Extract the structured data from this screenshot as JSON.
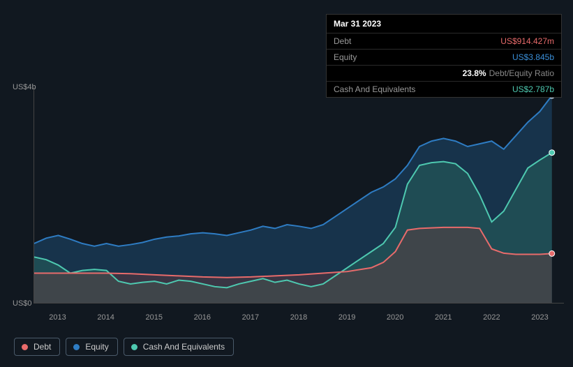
{
  "tooltip": {
    "date": "Mar 31 2023",
    "rows": [
      {
        "label": "Debt",
        "value": "US$914.427m",
        "color": "red"
      },
      {
        "label": "Equity",
        "value": "US$3.845b",
        "color": "blue"
      },
      {
        "label": "",
        "ratio": "23.8%",
        "ratio_label": "Debt/Equity Ratio"
      },
      {
        "label": "Cash And Equivalents",
        "value": "US$2.787b",
        "color": "teal"
      }
    ]
  },
  "chart": {
    "type": "area",
    "background_color": "#111820",
    "grid_color": "#2a3540",
    "axis_color": "#444",
    "label_color": "#999",
    "label_fontsize": 11,
    "ylim": [
      0,
      4
    ],
    "yticks": [
      {
        "v": 0,
        "label": "US$0"
      },
      {
        "v": 4,
        "label": "US$4b"
      }
    ],
    "xlim": [
      2012.5,
      2023.5
    ],
    "xticks": [
      2013,
      2014,
      2015,
      2016,
      2017,
      2018,
      2019,
      2020,
      2021,
      2022,
      2023
    ],
    "cursor_x": 2023.25,
    "series": [
      {
        "name": "Equity",
        "legend": "Equity",
        "stroke": "#2e7cc3",
        "fill": "#1e4a70",
        "fill_opacity": 0.55,
        "line_width": 2,
        "cursor_y": 3.845,
        "data": [
          [
            2012.5,
            1.1
          ],
          [
            2012.75,
            1.2
          ],
          [
            2013,
            1.25
          ],
          [
            2013.25,
            1.18
          ],
          [
            2013.5,
            1.1
          ],
          [
            2013.75,
            1.05
          ],
          [
            2014,
            1.1
          ],
          [
            2014.25,
            1.05
          ],
          [
            2014.5,
            1.08
          ],
          [
            2014.75,
            1.12
          ],
          [
            2015,
            1.18
          ],
          [
            2015.25,
            1.22
          ],
          [
            2015.5,
            1.24
          ],
          [
            2015.75,
            1.28
          ],
          [
            2016,
            1.3
          ],
          [
            2016.25,
            1.28
          ],
          [
            2016.5,
            1.25
          ],
          [
            2016.75,
            1.3
          ],
          [
            2017,
            1.35
          ],
          [
            2017.25,
            1.42
          ],
          [
            2017.5,
            1.38
          ],
          [
            2017.75,
            1.45
          ],
          [
            2018,
            1.42
          ],
          [
            2018.25,
            1.38
          ],
          [
            2018.5,
            1.45
          ],
          [
            2018.75,
            1.6
          ],
          [
            2019,
            1.75
          ],
          [
            2019.25,
            1.9
          ],
          [
            2019.5,
            2.05
          ],
          [
            2019.75,
            2.15
          ],
          [
            2020,
            2.3
          ],
          [
            2020.25,
            2.55
          ],
          [
            2020.5,
            2.9
          ],
          [
            2020.75,
            3.0
          ],
          [
            2021,
            3.05
          ],
          [
            2021.25,
            3.0
          ],
          [
            2021.5,
            2.9
          ],
          [
            2021.75,
            2.95
          ],
          [
            2022,
            3.0
          ],
          [
            2022.25,
            2.85
          ],
          [
            2022.5,
            3.1
          ],
          [
            2022.75,
            3.35
          ],
          [
            2023,
            3.55
          ],
          [
            2023.25,
            3.845
          ]
        ]
      },
      {
        "name": "Cash And Equivalents",
        "legend": "Cash And Equivalents",
        "stroke": "#4ec9b0",
        "fill": "#2a6b60",
        "fill_opacity": 0.45,
        "line_width": 2,
        "cursor_y": 2.787,
        "data": [
          [
            2012.5,
            0.85
          ],
          [
            2012.75,
            0.8
          ],
          [
            2013,
            0.7
          ],
          [
            2013.25,
            0.55
          ],
          [
            2013.5,
            0.6
          ],
          [
            2013.75,
            0.62
          ],
          [
            2014,
            0.6
          ],
          [
            2014.25,
            0.4
          ],
          [
            2014.5,
            0.35
          ],
          [
            2014.75,
            0.38
          ],
          [
            2015,
            0.4
          ],
          [
            2015.25,
            0.35
          ],
          [
            2015.5,
            0.42
          ],
          [
            2015.75,
            0.4
          ],
          [
            2016,
            0.35
          ],
          [
            2016.25,
            0.3
          ],
          [
            2016.5,
            0.28
          ],
          [
            2016.75,
            0.35
          ],
          [
            2017,
            0.4
          ],
          [
            2017.25,
            0.45
          ],
          [
            2017.5,
            0.38
          ],
          [
            2017.75,
            0.42
          ],
          [
            2018,
            0.35
          ],
          [
            2018.25,
            0.3
          ],
          [
            2018.5,
            0.35
          ],
          [
            2018.75,
            0.5
          ],
          [
            2019,
            0.65
          ],
          [
            2019.25,
            0.8
          ],
          [
            2019.5,
            0.95
          ],
          [
            2019.75,
            1.1
          ],
          [
            2020,
            1.4
          ],
          [
            2020.25,
            2.2
          ],
          [
            2020.5,
            2.55
          ],
          [
            2020.75,
            2.6
          ],
          [
            2021,
            2.62
          ],
          [
            2021.25,
            2.58
          ],
          [
            2021.5,
            2.4
          ],
          [
            2021.75,
            2.0
          ],
          [
            2022,
            1.5
          ],
          [
            2022.25,
            1.7
          ],
          [
            2022.5,
            2.1
          ],
          [
            2022.75,
            2.5
          ],
          [
            2023,
            2.65
          ],
          [
            2023.25,
            2.787
          ]
        ]
      },
      {
        "name": "Debt",
        "legend": "Debt",
        "stroke": "#e86b6b",
        "fill": "#7a3a3a",
        "fill_opacity": 0.35,
        "line_width": 2,
        "cursor_y": 0.914,
        "data": [
          [
            2012.5,
            0.55
          ],
          [
            2013,
            0.55
          ],
          [
            2013.5,
            0.55
          ],
          [
            2014,
            0.55
          ],
          [
            2014.5,
            0.54
          ],
          [
            2015,
            0.52
          ],
          [
            2015.5,
            0.5
          ],
          [
            2016,
            0.48
          ],
          [
            2016.5,
            0.47
          ],
          [
            2017,
            0.48
          ],
          [
            2017.5,
            0.5
          ],
          [
            2018,
            0.52
          ],
          [
            2018.5,
            0.55
          ],
          [
            2019,
            0.58
          ],
          [
            2019.5,
            0.65
          ],
          [
            2019.75,
            0.75
          ],
          [
            2020,
            0.95
          ],
          [
            2020.25,
            1.35
          ],
          [
            2020.5,
            1.38
          ],
          [
            2021,
            1.4
          ],
          [
            2021.5,
            1.4
          ],
          [
            2021.75,
            1.38
          ],
          [
            2022,
            1.0
          ],
          [
            2022.25,
            0.92
          ],
          [
            2022.5,
            0.9
          ],
          [
            2023,
            0.9
          ],
          [
            2023.25,
            0.914
          ]
        ]
      }
    ],
    "legend_order": [
      "Debt",
      "Equity",
      "Cash And Equivalents"
    ],
    "legend_colors": {
      "Debt": "#e86b6b",
      "Equity": "#2e7cc3",
      "Cash And Equivalents": "#4ec9b0"
    }
  }
}
